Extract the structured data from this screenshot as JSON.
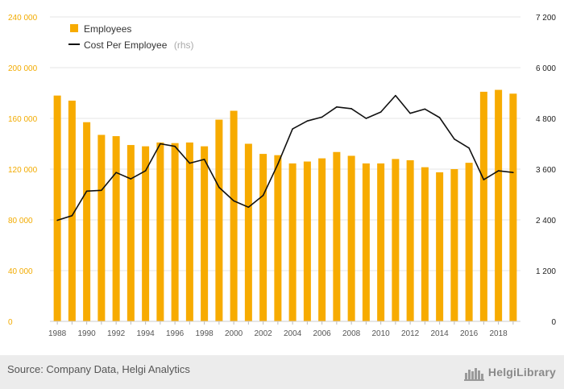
{
  "chart_data": {
    "type": "bar+line",
    "title": "",
    "xlabel": "",
    "ylabel": "",
    "categories": [
      1988,
      1989,
      1990,
      1991,
      1992,
      1993,
      1994,
      1995,
      1996,
      1997,
      1998,
      1999,
      2000,
      2001,
      2002,
      2003,
      2004,
      2005,
      2006,
      2007,
      2008,
      2009,
      2010,
      2011,
      2012,
      2013,
      2014,
      2015,
      2016,
      2017,
      2018,
      2019
    ],
    "x_tick_labels": [
      "1988",
      "1990",
      "1992",
      "1994",
      "1996",
      "1998",
      "2000",
      "2002",
      "2004",
      "2006",
      "2008",
      "2010",
      "2012",
      "2014",
      "2016",
      "2018"
    ],
    "series": [
      {
        "name": "Employees",
        "type": "bar",
        "axis": "left",
        "color": "#f7ab00",
        "values": [
          178000,
          174000,
          157000,
          147000,
          146000,
          139000,
          138000,
          141000,
          140500,
          141000,
          138000,
          159000,
          166000,
          140000,
          132000,
          131000,
          124500,
          126000,
          128500,
          133500,
          130500,
          124500,
          124500,
          128000,
          127000,
          121500,
          117500,
          120000,
          125000,
          181000,
          182500,
          179500
        ]
      },
      {
        "name": "Cost Per Employee",
        "name_suffix": "(rhs)",
        "type": "line",
        "axis": "right",
        "color": "#111111",
        "values": [
          2390,
          2500,
          3080,
          3100,
          3520,
          3370,
          3560,
          4200,
          4140,
          3740,
          3830,
          3170,
          2850,
          2700,
          2980,
          3720,
          4550,
          4740,
          4830,
          5070,
          5030,
          4800,
          4950,
          5340,
          4920,
          5020,
          4820,
          4310,
          4100,
          3350,
          3560,
          3520
        ]
      }
    ],
    "y_left": {
      "ylim": [
        0,
        240000
      ],
      "ticks": [
        0,
        40000,
        80000,
        120000,
        160000,
        200000,
        240000
      ],
      "tick_labels": [
        "0",
        "40 000",
        "80 000",
        "120 000",
        "160 000",
        "200 000",
        "240 000"
      ]
    },
    "y_right": {
      "ylim": [
        0,
        7200
      ],
      "ticks": [
        0,
        1200,
        2400,
        3600,
        4800,
        6000,
        7200
      ],
      "tick_labels": [
        "0",
        "1 200",
        "2 400",
        "3 600",
        "4 800",
        "6 000",
        "7 200"
      ]
    },
    "grid": true,
    "legend_position": "top-left"
  },
  "footer": {
    "source": "Source: Company Data, Helgi Analytics",
    "brand": "HelgiLibrary"
  },
  "colors": {
    "accent": "#f7ab00",
    "grid": "#e6e6e6",
    "footer_bg": "#ececec"
  }
}
